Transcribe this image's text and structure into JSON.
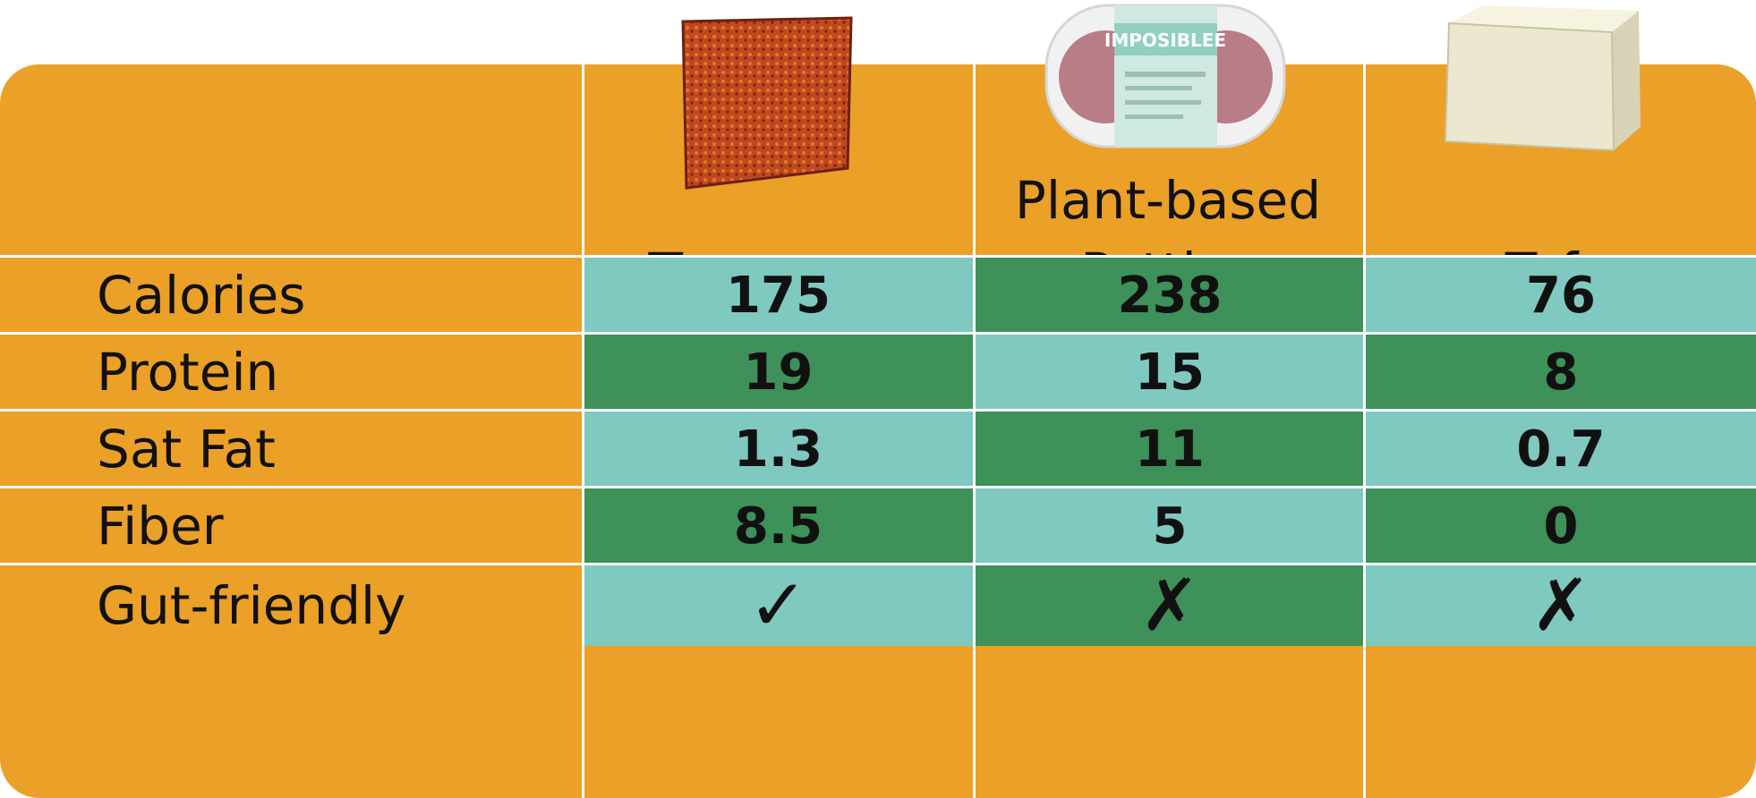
{
  "columns": [
    {
      "title": "Tempayy",
      "image": "tempeh-slice-image"
    },
    {
      "title_line1": "Plant-based",
      "title_line2": "Patties",
      "image": "impossible-patties-package-image",
      "package_label": "IMPOSIBLEE"
    },
    {
      "title": "Tofu",
      "image": "tofu-block-image"
    }
  ],
  "rows": [
    {
      "label": "Calories",
      "values": [
        "175",
        "238",
        "76"
      ]
    },
    {
      "label": "Protein",
      "values": [
        "19",
        "15",
        "8"
      ]
    },
    {
      "label": "Sat Fat",
      "values": [
        "1.3",
        "11",
        "0.7"
      ]
    },
    {
      "label": "Fiber",
      "values": [
        "8.5",
        "5",
        "0"
      ]
    },
    {
      "label": "Gut-friendly",
      "values": [
        "✓",
        "✗",
        "✗"
      ],
      "icons": [
        "check-icon",
        "cross-icon",
        "cross-icon"
      ]
    }
  ],
  "colors": {
    "header": "#eba028",
    "light_cell": "#80c9c0",
    "dark_cell": "#3d9159",
    "grid": "#ffffff"
  }
}
